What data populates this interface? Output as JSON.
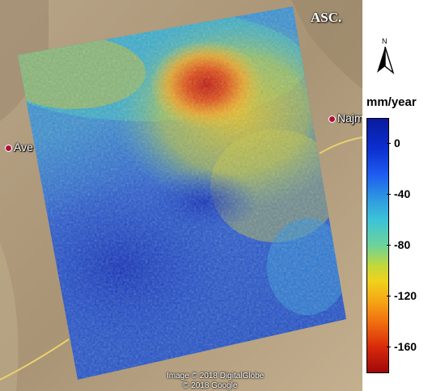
{
  "map": {
    "track_label": "ASC.",
    "places": [
      {
        "name": "Ave"
      },
      {
        "name": "Najm"
      }
    ],
    "attribution": [
      "Image © 2018 DigitalGlobe",
      "© 2018 Google"
    ]
  },
  "north_arrow": {
    "letter": "N"
  },
  "colorbar": {
    "unit": "mm/year",
    "ticks": [
      0,
      -40,
      -80,
      -120,
      -160
    ],
    "range": [
      20,
      -180
    ],
    "colors": {
      "low": "#a0080a",
      "high": "#0a1a9c"
    }
  }
}
